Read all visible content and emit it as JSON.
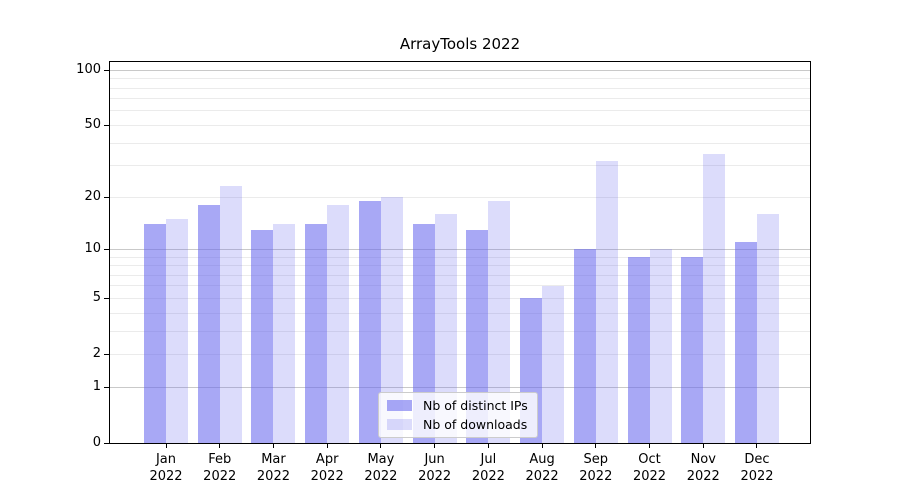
{
  "chart_data": {
    "type": "bar",
    "title": "ArrayTools 2022",
    "categories": [
      "Jan",
      "Feb",
      "Mar",
      "Apr",
      "May",
      "Jun",
      "Jul",
      "Aug",
      "Sep",
      "Oct",
      "Nov",
      "Dec"
    ],
    "category_year": "2022",
    "series": [
      {
        "name": "Nb of distinct IPs",
        "color": "#6666ee",
        "alpha": 0.57,
        "values": [
          14,
          18,
          13,
          14,
          19,
          14,
          13,
          5,
          10,
          9,
          9,
          11
        ]
      },
      {
        "name": "Nb of downloads",
        "color": "#6666ee",
        "alpha": 0.23,
        "values": [
          15,
          23,
          14,
          18,
          20,
          16,
          19,
          6,
          32,
          10,
          35,
          16
        ]
      }
    ],
    "y_scale": "log10(1+v)",
    "ylim": [
      0,
      111
    ],
    "y_ticks": [
      {
        "value": 100,
        "label": "100"
      },
      {
        "value": 50,
        "label": "50"
      },
      {
        "value": 20,
        "label": "20"
      },
      {
        "value": 10,
        "label": "10"
      },
      {
        "value": 5,
        "label": "5"
      },
      {
        "value": 2,
        "label": "2"
      },
      {
        "value": 1,
        "label": "1"
      },
      {
        "value": 0,
        "label": "0"
      }
    ],
    "grid": {
      "major_values": [
        1,
        10,
        100
      ],
      "minor_values": [
        2,
        3,
        4,
        5,
        6,
        7,
        8,
        9,
        20,
        30,
        40,
        50,
        60,
        70,
        80,
        90
      ]
    },
    "legend": {
      "position": "lower center",
      "entries": [
        "Nb of distinct IPs",
        "Nb of downloads"
      ]
    }
  },
  "colors": {
    "major_grid": "#c9c9c9",
    "minor_grid": "#ebebeb",
    "axis": "#000000",
    "text": "#000000",
    "legend_border": "#cccccc"
  }
}
